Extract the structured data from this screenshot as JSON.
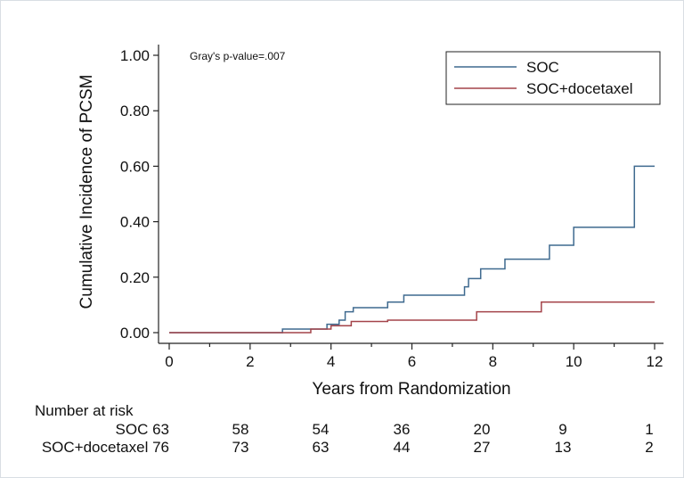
{
  "chart_data": {
    "type": "line",
    "step": true,
    "annotation": "Gray's p-value=.007",
    "xlabel": "Years from Randomization",
    "ylabel": "Cumulative Incidence of PCSM",
    "xlim": [
      0,
      12
    ],
    "ylim": [
      0,
      1
    ],
    "xticks": [
      0,
      2,
      4,
      6,
      8,
      10,
      12
    ],
    "yticks": [
      0,
      0.2,
      0.4,
      0.6,
      0.8,
      1.0
    ],
    "ytick_labels": [
      "0.00",
      "0.20",
      "0.40",
      "0.60",
      "0.80",
      "1.00"
    ],
    "grid": false,
    "legend_position": "top-right",
    "series": [
      {
        "name": "SOC",
        "color": "#3f6a8f",
        "x": [
          0,
          2.8,
          3.9,
          4.2,
          4.35,
          4.55,
          5.4,
          5.8,
          7.3,
          7.4,
          7.7,
          8.3,
          9.4,
          10.0,
          11.5,
          12.0
        ],
        "y": [
          0,
          0.013,
          0.03,
          0.045,
          0.075,
          0.09,
          0.11,
          0.135,
          0.165,
          0.195,
          0.23,
          0.265,
          0.315,
          0.38,
          0.6,
          0.6
        ]
      },
      {
        "name": "SOC+docetaxel",
        "color": "#a4444a",
        "x": [
          0,
          3.5,
          4.0,
          4.5,
          5.4,
          7.6,
          9.2,
          12.0
        ],
        "y": [
          0,
          0.013,
          0.025,
          0.04,
          0.045,
          0.075,
          0.11,
          0.11
        ]
      }
    ],
    "risk_table": {
      "title": "Number at risk",
      "rows": [
        {
          "label": "SOC 63",
          "values": [
            "58",
            "54",
            "36",
            "20",
            "9",
            "1"
          ]
        },
        {
          "label": "SOC+docetaxel 76",
          "values": [
            "73",
            "63",
            "44",
            "27",
            "13",
            "2"
          ]
        }
      ]
    }
  }
}
